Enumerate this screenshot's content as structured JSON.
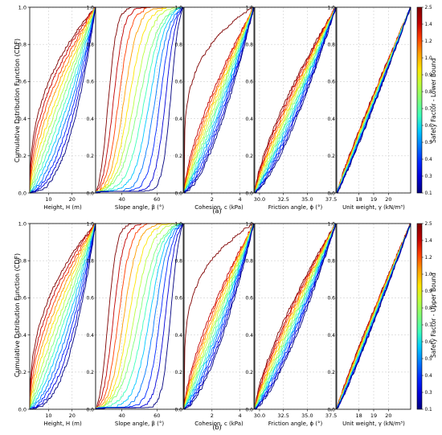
{
  "figure": {
    "panels": [
      {
        "label": "(a)",
        "colorbar_label": "Safety Factor - Lower Bound"
      },
      {
        "label": "(b)",
        "colorbar_label": "Safety Factor - Upper Bound"
      }
    ],
    "ylabel": "Cumulative Dstribution Function (CDF)",
    "colorbar_ticks": [
      "0.1",
      "0.3",
      "0.4",
      "0.5",
      "0.6",
      "0.7",
      "0.8",
      "0.9",
      "1.0",
      "1.2",
      "1.4",
      "2.5"
    ],
    "colorbar_colors": [
      "#00007f",
      "#0000d8",
      "#0028ff",
      "#0078ff",
      "#00c8ff",
      "#3dffba",
      "#7dff7a",
      "#baff3d",
      "#ffe500",
      "#ff9e00",
      "#ff3e00",
      "#c10000",
      "#7f0000"
    ]
  },
  "chart_data": [
    {
      "type": "line",
      "panel": "(a)",
      "xlabel": "Height, H (m)",
      "xlim": [
        2,
        30
      ],
      "xticks": [
        10,
        20
      ],
      "ylim": [
        0,
        1
      ],
      "yticks": [
        "0.0",
        "0.2",
        "0.4",
        "0.6",
        "0.8",
        "1.0"
      ],
      "grid": true,
      "series_profile": {
        "shape": "power",
        "strength": 0.55
      }
    },
    {
      "type": "line",
      "panel": "(a)",
      "xlabel": "Slope angle, β (°)",
      "xlim": [
        25,
        75
      ],
      "xticks": [
        40,
        60
      ],
      "ylim": [
        0,
        1
      ],
      "grid": true,
      "series_profile": {
        "shape": "shift",
        "strength": 0.8
      }
    },
    {
      "type": "line",
      "panel": "(a)",
      "xlabel": "Cohesion, c (kPa)",
      "xlim": [
        0,
        5
      ],
      "xticks": [
        2,
        4
      ],
      "ylim": [
        0,
        1
      ],
      "grid": true,
      "series_profile": {
        "shape": "power",
        "strength": 0.28,
        "outlier": "low"
      }
    },
    {
      "type": "line",
      "panel": "(a)",
      "xlabel": "Friction angle, ϕ (°)",
      "xlim": [
        29.5,
        38
      ],
      "xticks": [
        "30.0",
        "32.5",
        "35.0",
        "37.5"
      ],
      "ylim": [
        0,
        1
      ],
      "grid": true,
      "series_profile": {
        "shape": "power",
        "strength": 0.2
      }
    },
    {
      "type": "line",
      "panel": "(a)",
      "xlabel": "Unit weight, γ (kN/m³)",
      "xlim": [
        16.5,
        21.5
      ],
      "xticks": [
        18,
        19,
        20
      ],
      "ylim": [
        0,
        1
      ],
      "grid": true,
      "series_profile": {
        "shape": "power",
        "strength": 0.06
      }
    },
    {
      "type": "line",
      "panel": "(b)",
      "xlabel": "Height, H (m)",
      "xlim": [
        2,
        30
      ],
      "xticks": [
        10,
        20
      ],
      "ylim": [
        0,
        1
      ],
      "yticks": [
        "0.0",
        "0.2",
        "0.4",
        "0.6",
        "0.8",
        "1.0"
      ],
      "grid": true,
      "series_profile": {
        "shape": "power",
        "strength": 0.55
      }
    },
    {
      "type": "line",
      "panel": "(b)",
      "xlabel": "Slope angle, β (°)",
      "xlim": [
        25,
        75
      ],
      "xticks": [
        40,
        60
      ],
      "ylim": [
        0,
        1
      ],
      "grid": true,
      "series_profile": {
        "shape": "shift",
        "strength": 0.8
      }
    },
    {
      "type": "line",
      "panel": "(b)",
      "xlabel": "Cohesion, c (kPa)",
      "xlim": [
        0,
        5
      ],
      "xticks": [
        2,
        4
      ],
      "ylim": [
        0,
        1
      ],
      "grid": true,
      "series_profile": {
        "shape": "power",
        "strength": 0.28,
        "outlier": "low"
      }
    },
    {
      "type": "line",
      "panel": "(b)",
      "xlabel": "Friction angle, ϕ (°)",
      "xlim": [
        29.5,
        38
      ],
      "xticks": [
        "30.0",
        "32.5",
        "35.0",
        "37.5"
      ],
      "ylim": [
        0,
        1
      ],
      "grid": true,
      "series_profile": {
        "shape": "power",
        "strength": 0.2
      }
    },
    {
      "type": "line",
      "panel": "(b)",
      "xlabel": "Unit weight, γ (kN/m³)",
      "xlim": [
        16.5,
        21.5
      ],
      "xticks": [
        18,
        19,
        20
      ],
      "ylim": [
        0,
        1
      ],
      "grid": true,
      "series_profile": {
        "shape": "power",
        "strength": 0.06
      }
    }
  ]
}
